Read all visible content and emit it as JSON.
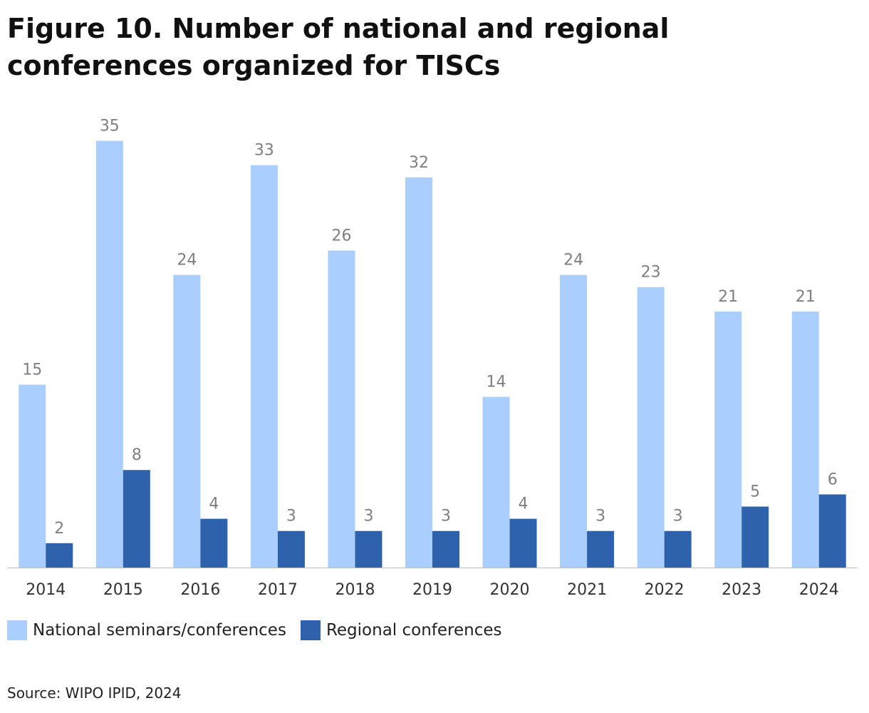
{
  "title": "Figure 10. Number of national and regional conferences organized for TISCs",
  "source": "Source: WIPO IPID, 2024",
  "colors": {
    "national": "#aacffe",
    "regional": "#2e62ad",
    "label": "#7f7f7f",
    "axis": "#bfbfbf"
  },
  "chart_data": {
    "type": "bar",
    "title": "Figure 10. Number of national and regional conferences organized for TISCs",
    "xlabel": "",
    "ylabel": "",
    "ylim": [
      0,
      36
    ],
    "grid": false,
    "legend_position": "bottom-left",
    "categories": [
      "2014",
      "2015",
      "2016",
      "2017",
      "2018",
      "2019",
      "2020",
      "2021",
      "2022",
      "2023",
      "2024"
    ],
    "series": [
      {
        "name": "National seminars/conferences",
        "values": [
          15,
          35,
          24,
          33,
          26,
          32,
          14,
          24,
          23,
          21,
          21
        ]
      },
      {
        "name": "Regional conferences",
        "values": [
          2,
          8,
          4,
          3,
          3,
          3,
          4,
          3,
          3,
          5,
          6
        ]
      }
    ]
  }
}
